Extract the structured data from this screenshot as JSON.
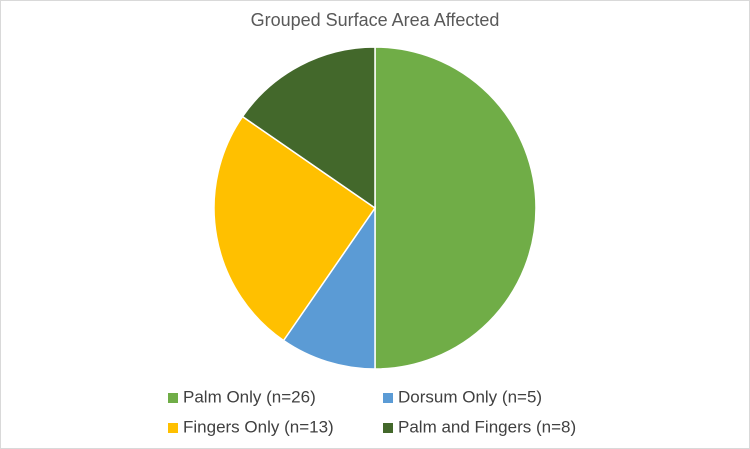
{
  "chart_data": {
    "type": "pie",
    "title": "Grouped Surface Area Affected",
    "categories": [
      "Palm Only (n=26)",
      "Dorsum Only (n=5)",
      "Fingers Only (n=13)",
      "Palm and Fingers (n=8)"
    ],
    "values": [
      26,
      5,
      13,
      8
    ],
    "colors": [
      "#70ad47",
      "#5b9bd5",
      "#ffc000",
      "#43682b"
    ]
  }
}
